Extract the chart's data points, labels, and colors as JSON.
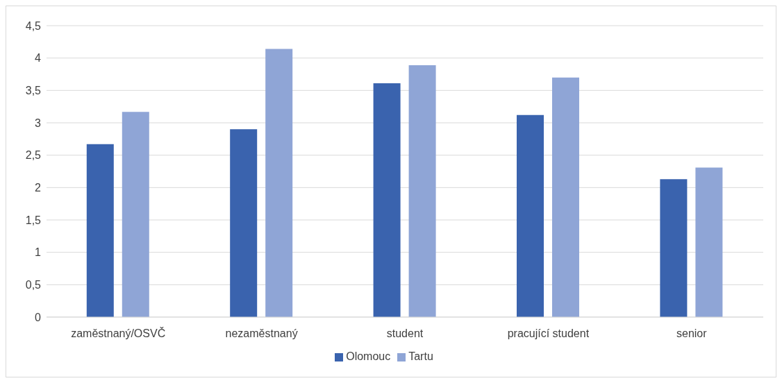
{
  "chart_data": {
    "type": "bar",
    "categories": [
      "zaměstnaný/OSVČ",
      "nezaměstnaný",
      "student",
      "pracující student",
      "senior"
    ],
    "series": [
      {
        "name": "Olomouc",
        "color": "#3a63ae",
        "values": [
          2.67,
          2.9,
          3.61,
          3.12,
          2.13
        ]
      },
      {
        "name": "Tartu",
        "color": "#8fa5d6",
        "values": [
          3.17,
          4.14,
          3.89,
          3.7,
          2.31
        ]
      }
    ],
    "ylim": [
      0,
      4.5
    ],
    "yticks": [
      0,
      {
        "value": 0.5,
        "label": "0,5"
      },
      1,
      {
        "value": 1.5,
        "label": "1,5"
      },
      2,
      {
        "value": 2.5,
        "label": "2,5"
      },
      3,
      {
        "value": 3.5,
        "label": "3,5"
      },
      4,
      {
        "value": 4.5,
        "label": "4,5"
      }
    ],
    "grid": "y",
    "legend": "bottom"
  }
}
